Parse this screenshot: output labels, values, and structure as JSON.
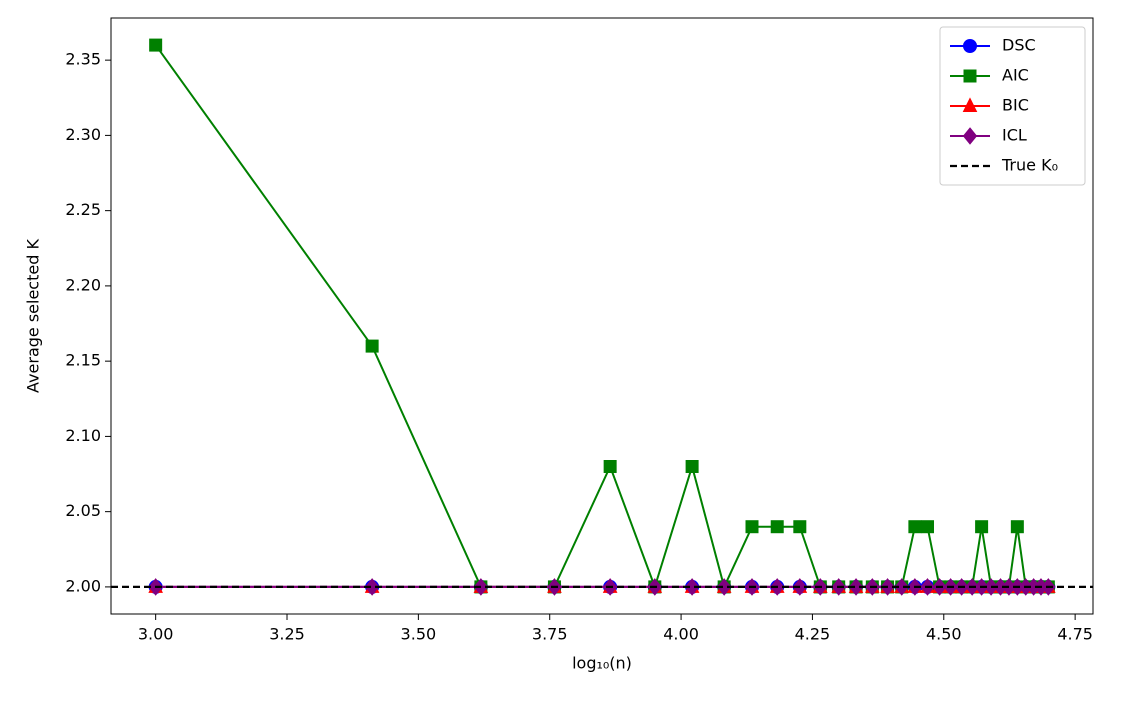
{
  "chart_data": {
    "type": "line",
    "xlabel": "log₁₀(n)",
    "ylabel": "Average selected K",
    "x": [
      3.0,
      3.412,
      3.619,
      3.759,
      3.865,
      3.95,
      4.021,
      4.082,
      4.135,
      4.183,
      4.226,
      4.265,
      4.3,
      4.333,
      4.364,
      4.393,
      4.42,
      4.445,
      4.469,
      4.492,
      4.513,
      4.534,
      4.554,
      4.572,
      4.59,
      4.608,
      4.624,
      4.64,
      4.656,
      4.671,
      4.685,
      4.699
    ],
    "series": [
      {
        "name": "DSC",
        "color": "#0000ff",
        "marker": "circle",
        "values": [
          2,
          2,
          2,
          2,
          2,
          2,
          2,
          2,
          2,
          2,
          2,
          2,
          2,
          2,
          2,
          2,
          2,
          2,
          2,
          2,
          2,
          2,
          2,
          2,
          2,
          2,
          2,
          2,
          2,
          2,
          2,
          2
        ]
      },
      {
        "name": "AIC",
        "color": "#008000",
        "marker": "square",
        "values": [
          2.36,
          2.16,
          2,
          2,
          2.08,
          2,
          2.08,
          2,
          2.04,
          2.04,
          2.04,
          2,
          2,
          2,
          2,
          2,
          2,
          2.04,
          2.04,
          2,
          2,
          2,
          2,
          2.04,
          2,
          2,
          2,
          2.04,
          2,
          2,
          2,
          2
        ]
      },
      {
        "name": "BIC",
        "color": "#ff0000",
        "marker": "triangle",
        "values": [
          2,
          2,
          2,
          2,
          2,
          2,
          2,
          2,
          2,
          2,
          2,
          2,
          2,
          2,
          2,
          2,
          2,
          2,
          2,
          2,
          2,
          2,
          2,
          2,
          2,
          2,
          2,
          2,
          2,
          2,
          2,
          2
        ]
      },
      {
        "name": "ICL",
        "color": "#800080",
        "marker": "diamond",
        "values": [
          2,
          2,
          2,
          2,
          2,
          2,
          2,
          2,
          2,
          2,
          2,
          2,
          2,
          2,
          2,
          2,
          2,
          2,
          2,
          2,
          2,
          2,
          2,
          2,
          2,
          2,
          2,
          2,
          2,
          2,
          2,
          2
        ]
      }
    ],
    "reference_line": {
      "name": "True K₀",
      "value": 2,
      "color": "#000000"
    },
    "xlim": [
      2.915,
      4.784
    ],
    "ylim": [
      1.982,
      2.378
    ],
    "xticks": [
      {
        "value": 3,
        "label": "3.00"
      },
      {
        "value": 3.25,
        "label": "3.25"
      },
      {
        "value": 3.5,
        "label": "3.50"
      },
      {
        "value": 3.75,
        "label": "3.75"
      },
      {
        "value": 4,
        "label": "4.00"
      },
      {
        "value": 4.25,
        "label": "4.25"
      },
      {
        "value": 4.5,
        "label": "4.50"
      },
      {
        "value": 4.75,
        "label": "4.75"
      }
    ],
    "yticks": [
      {
        "value": 2,
        "label": "2.00"
      },
      {
        "value": 2.05,
        "label": "2.05"
      },
      {
        "value": 2.1,
        "label": "2.10"
      },
      {
        "value": 2.15,
        "label": "2.15"
      },
      {
        "value": 2.2,
        "label": "2.20"
      },
      {
        "value": 2.25,
        "label": "2.25"
      },
      {
        "value": 2.3,
        "label": "2.30"
      },
      {
        "value": 2.35,
        "label": "2.35"
      }
    ],
    "legend": "upper right"
  }
}
